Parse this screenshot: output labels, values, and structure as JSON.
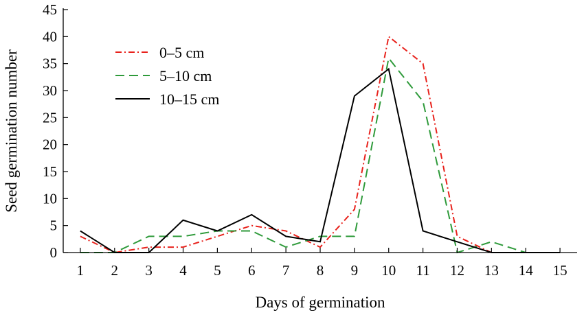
{
  "chart_data": {
    "type": "line",
    "title": "",
    "xlabel": "Days of germination",
    "ylabel": "Seed germination number",
    "x": [
      1,
      2,
      3,
      4,
      5,
      6,
      7,
      8,
      9,
      10,
      11,
      12,
      13,
      14,
      15
    ],
    "xlim": [
      0.5,
      15.5
    ],
    "ylim": [
      0,
      45
    ],
    "yticks": [
      0,
      5,
      10,
      15,
      20,
      25,
      30,
      35,
      40,
      45
    ],
    "grid": false,
    "legend_position": "top-left",
    "series": [
      {
        "name": "0–5 cm",
        "color": "#e8221c",
        "line_style": "dash-dot",
        "values": [
          3,
          0,
          1,
          1,
          3,
          5,
          4,
          1,
          8,
          40,
          35,
          3,
          0,
          0,
          0
        ]
      },
      {
        "name": "5–10 cm",
        "color": "#2e9a3a",
        "line_style": "dashed",
        "values": [
          0,
          0,
          3,
          3,
          4,
          4,
          1,
          3,
          3,
          36,
          28,
          0,
          2,
          0,
          0
        ]
      },
      {
        "name": "10–15 cm",
        "color": "#000000",
        "line_style": "solid",
        "values": [
          4,
          0,
          0,
          6,
          4,
          7,
          3,
          2,
          29,
          34,
          4,
          2,
          0,
          0,
          0
        ]
      }
    ]
  }
}
